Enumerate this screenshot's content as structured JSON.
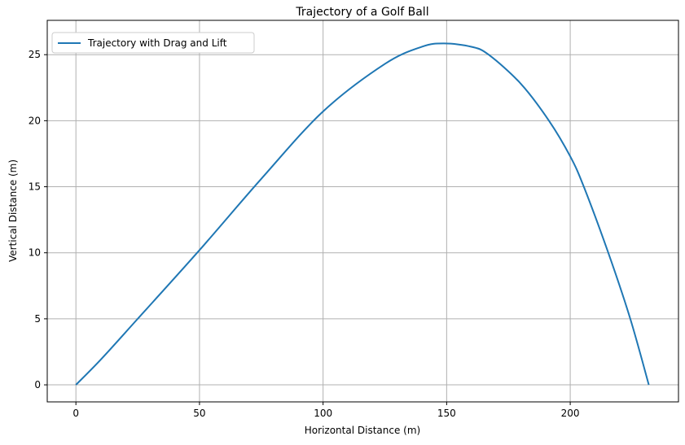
{
  "chart_data": {
    "type": "line",
    "title": "Trajectory of a Golf Ball",
    "xlabel": "Horizontal Distance (m)",
    "ylabel": "Vertical Distance (m)",
    "xlim": [
      -11.6,
      243.8
    ],
    "ylim": [
      -1.29,
      27.6
    ],
    "xticks": [
      0,
      50,
      100,
      150,
      200
    ],
    "yticks": [
      0,
      5,
      10,
      15,
      20,
      25
    ],
    "grid": true,
    "legend_position": "top-left",
    "colors": {
      "series": "#1f77b4",
      "grid": "#b0b0b0"
    },
    "series": [
      {
        "name": "Trajectory with Drag and Lift",
        "x": [
          0,
          10,
          25,
          50,
          75,
          100,
          125,
          140,
          149,
          160,
          167,
          180,
          191.4,
          200,
          205.5,
          215.4,
          224.3,
          231.8
        ],
        "y": [
          0,
          1.9,
          5.0,
          10.2,
          15.6,
          20.7,
          24.3,
          25.6,
          25.85,
          25.6,
          25.0,
          22.8,
          20.0,
          17.3,
          15.0,
          10.0,
          5.0,
          0
        ]
      }
    ]
  }
}
